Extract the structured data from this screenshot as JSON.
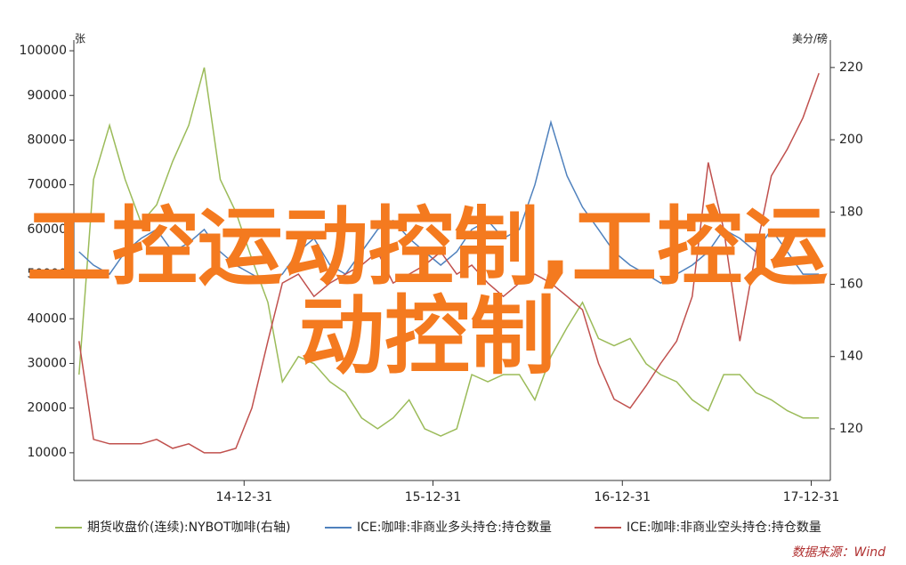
{
  "chart_data": {
    "type": "line",
    "title": "工控运动控制,工控运动控制",
    "y_label": "张",
    "y2_label": "美分/磅",
    "source": "数据来源：Wind",
    "x": [
      "14-02-15",
      "14-03-15",
      "14-04-15",
      "14-05-15",
      "14-06-15",
      "14-07-15",
      "14-08-15",
      "14-09-15",
      "14-10-15",
      "14-11-15",
      "14-12-15",
      "15-01-15",
      "15-02-15",
      "15-03-15",
      "15-04-15",
      "15-05-15",
      "15-06-15",
      "15-07-15",
      "15-08-15",
      "15-09-15",
      "15-10-15",
      "15-11-15",
      "15-12-15",
      "16-01-15",
      "16-02-15",
      "16-03-15",
      "16-04-15",
      "16-05-15",
      "16-06-15",
      "16-07-15",
      "16-08-15",
      "16-09-15",
      "16-10-15",
      "16-11-15",
      "16-12-15",
      "17-01-15",
      "17-02-15",
      "17-03-15",
      "17-04-15",
      "17-05-15",
      "17-06-15",
      "17-07-15",
      "17-08-15",
      "17-09-15",
      "17-10-15",
      "17-11-15",
      "17-12-15",
      "18-01-15"
    ],
    "xlim": [
      "14-02-05",
      "18-02-06"
    ],
    "xticks": [
      "14-12-31",
      "15-12-31",
      "16-12-31",
      "17-12-31"
    ],
    "ylim": [
      3800,
      102400
    ],
    "yticks": [
      10000,
      20000,
      30000,
      40000,
      50000,
      60000,
      70000,
      80000,
      90000,
      100000
    ],
    "y2lim": [
      105.7,
      227.6
    ],
    "y2ticks": [
      120,
      140,
      160,
      180,
      200,
      220
    ],
    "series": [
      {
        "name": "期货收盘价(连续):NYBOT咖啡(右轴)",
        "color": "#9bbb59",
        "axis": "y2",
        "values": [
          135,
          189,
          204,
          189,
          177,
          182,
          194,
          204,
          220,
          189,
          180,
          167,
          155,
          133,
          140,
          138,
          133,
          130,
          123,
          120,
          123,
          128,
          120,
          118,
          120,
          135,
          133,
          135,
          135,
          128,
          140,
          148,
          155,
          145,
          143,
          145,
          138,
          135,
          133,
          128,
          125,
          135,
          135,
          130,
          128,
          125,
          123,
          123
        ]
      },
      {
        "name": "ICE:咖啡:非商业多头持仓:持仓数量",
        "color": "#4f81bd",
        "values": [
          55000,
          52000,
          50000,
          55000,
          58000,
          60000,
          55000,
          57000,
          60000,
          55000,
          52000,
          50000,
          48000,
          50000,
          55000,
          58000,
          52000,
          50000,
          55000,
          60000,
          62000,
          58000,
          55000,
          52000,
          55000,
          60000,
          62000,
          58000,
          60000,
          70000,
          84000,
          72000,
          65000,
          60000,
          55000,
          52000,
          50000,
          48000,
          50000,
          52000,
          55000,
          60000,
          58000,
          55000,
          60000,
          55000,
          50000,
          50000
        ]
      },
      {
        "name": "ICE:咖啡:非商业空头持仓:持仓数量",
        "color": "#c0504d",
        "values": [
          35000,
          13000,
          12000,
          12000,
          12000,
          13000,
          11000,
          12000,
          10000,
          10000,
          11000,
          20000,
          35000,
          48000,
          50000,
          45000,
          48000,
          50000,
          52000,
          55000,
          48000,
          50000,
          52000,
          55000,
          50000,
          52000,
          48000,
          45000,
          48000,
          50000,
          48000,
          45000,
          42000,
          30000,
          22000,
          20000,
          25000,
          30000,
          35000,
          45000,
          75000,
          60000,
          35000,
          55000,
          72000,
          78000,
          85000,
          95000
        ]
      }
    ]
  }
}
